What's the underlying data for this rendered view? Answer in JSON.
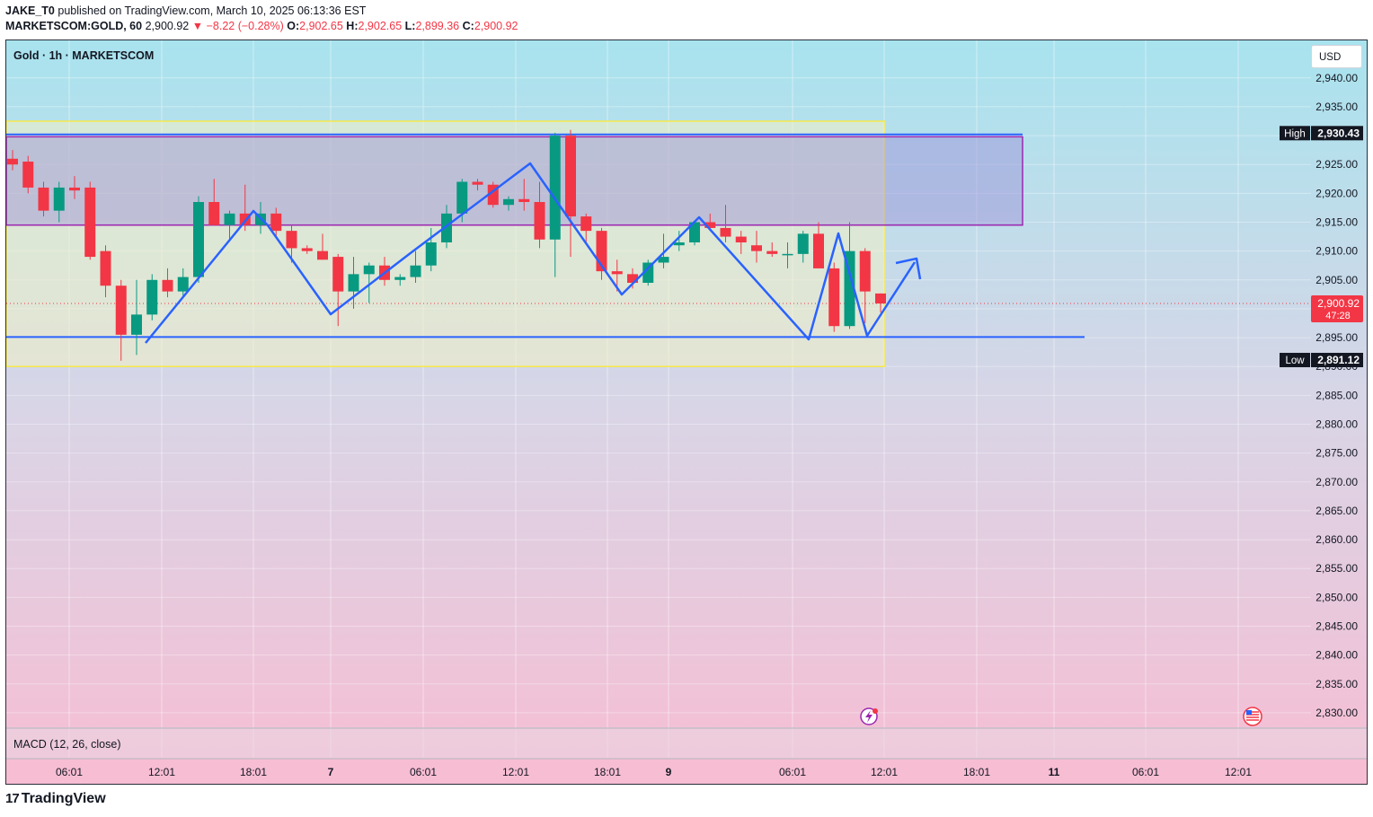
{
  "header": {
    "publisher": "JAKE_T0",
    "published_text": "published on TradingView.com, March 10, 2025 06:13:36 EST",
    "symbol": "MARKETSCOM:GOLD, 60",
    "last": "2,900.92",
    "change": "−8.22 (−0.28%)",
    "o_label": "O:",
    "o": "2,902.65",
    "h_label": "H:",
    "h": "2,902.65",
    "l_label": "L:",
    "l": "2,899.36",
    "c_label": "C:",
    "c": "2,900.92"
  },
  "chart_title": "Gold · 1h · MARKETSCOM",
  "currency_button": "USD",
  "indicator_label": "MACD (12, 26, close)",
  "footer_brand": "TradingView",
  "colors": {
    "up": "#089981",
    "down": "#f23645",
    "drawing": "#2962ff",
    "resistance_zone": "#9c27b0",
    "range_box": "#ffeb3b"
  },
  "chart_data": {
    "type": "candlestick",
    "title": "Gold · 1h · MARKETSCOM",
    "ylim": [
      2827.5,
      2946.5
    ],
    "y_ticks": [
      2940,
      2935,
      2930,
      2925,
      2920,
      2915,
      2910,
      2905,
      2900,
      2895,
      2890,
      2885,
      2880,
      2875,
      2870,
      2865,
      2860,
      2855,
      2850,
      2845,
      2840,
      2835,
      2830
    ],
    "y_tick_labels": [
      "2,940.00",
      "2,935.00",
      "2,930.00",
      "2,925.00",
      "2,920.00",
      "2,915.00",
      "2,910.00",
      "2,905.00",
      "2,900.00",
      "2,895.00",
      "2,890.00",
      "2,885.00",
      "2,880.00",
      "2,875.00",
      "2,870.00",
      "2,865.00",
      "2,860.00",
      "2,855.00",
      "2,850.00",
      "2,845.00",
      "2,840.00",
      "2,835.00",
      "2,830.00"
    ],
    "x_ticks": [
      "06:01",
      "12:01",
      "18:01",
      "7",
      "06:01",
      "12:01",
      "18:01",
      "9",
      "06:01",
      "12:01",
      "18:01",
      "11",
      "06:01",
      "12:01"
    ],
    "candles": [
      {
        "o": 2926.0,
        "h": 2927.5,
        "l": 2924.0,
        "c": 2925.0
      },
      {
        "o": 2925.5,
        "h": 2926.5,
        "l": 2920.0,
        "c": 2921.0
      },
      {
        "o": 2921.0,
        "h": 2922.0,
        "l": 2916.0,
        "c": 2917.0
      },
      {
        "o": 2917.0,
        "h": 2922.0,
        "l": 2915.0,
        "c": 2921.0
      },
      {
        "o": 2921.0,
        "h": 2923.0,
        "l": 2919.0,
        "c": 2920.5
      },
      {
        "o": 2921.0,
        "h": 2922.0,
        "l": 2908.5,
        "c": 2909.0
      },
      {
        "o": 2910.0,
        "h": 2911.0,
        "l": 2902.0,
        "c": 2904.0
      },
      {
        "o": 2904.0,
        "h": 2905.0,
        "l": 2891.0,
        "c": 2895.5
      },
      {
        "o": 2895.5,
        "h": 2905.0,
        "l": 2892.0,
        "c": 2899.0
      },
      {
        "o": 2899.0,
        "h": 2906.0,
        "l": 2898.0,
        "c": 2905.0
      },
      {
        "o": 2905.0,
        "h": 2907.0,
        "l": 2902.0,
        "c": 2903.0
      },
      {
        "o": 2903.0,
        "h": 2907.0,
        "l": 2902.0,
        "c": 2905.5
      },
      {
        "o": 2905.5,
        "h": 2919.5,
        "l": 2904.5,
        "c": 2918.5
      },
      {
        "o": 2918.5,
        "h": 2922.5,
        "l": 2914.5,
        "c": 2914.5
      },
      {
        "o": 2914.5,
        "h": 2917.0,
        "l": 2912.0,
        "c": 2916.5
      },
      {
        "o": 2916.5,
        "h": 2921.5,
        "l": 2913.5,
        "c": 2914.5
      },
      {
        "o": 2914.5,
        "h": 2918.5,
        "l": 2913.0,
        "c": 2916.5
      },
      {
        "o": 2916.5,
        "h": 2917.5,
        "l": 2912.5,
        "c": 2913.5
      },
      {
        "o": 2913.5,
        "h": 2914.5,
        "l": 2908.0,
        "c": 2910.5
      },
      {
        "o": 2910.5,
        "h": 2911.0,
        "l": 2909.5,
        "c": 2910.0
      },
      {
        "o": 2910.0,
        "h": 2913.0,
        "l": 2908.5,
        "c": 2908.5
      },
      {
        "o": 2909.0,
        "h": 2909.5,
        "l": 2897.0,
        "c": 2903.0
      },
      {
        "o": 2903.0,
        "h": 2909.0,
        "l": 2900.0,
        "c": 2906.0
      },
      {
        "o": 2906.0,
        "h": 2908.0,
        "l": 2901.0,
        "c": 2907.5
      },
      {
        "o": 2907.5,
        "h": 2909.0,
        "l": 2904.0,
        "c": 2905.0
      },
      {
        "o": 2905.0,
        "h": 2906.0,
        "l": 2904.0,
        "c": 2905.5
      },
      {
        "o": 2905.5,
        "h": 2910.0,
        "l": 2904.5,
        "c": 2907.5
      },
      {
        "o": 2907.5,
        "h": 2914.0,
        "l": 2906.5,
        "c": 2911.5
      },
      {
        "o": 2911.5,
        "h": 2918.0,
        "l": 2910.5,
        "c": 2916.5
      },
      {
        "o": 2916.5,
        "h": 2922.5,
        "l": 2915.0,
        "c": 2922.0
      },
      {
        "o": 2922.0,
        "h": 2922.5,
        "l": 2920.5,
        "c": 2921.5
      },
      {
        "o": 2921.5,
        "h": 2922.0,
        "l": 2917.5,
        "c": 2918.0
      },
      {
        "o": 2918.0,
        "h": 2919.5,
        "l": 2917.0,
        "c": 2919.0
      },
      {
        "o": 2919.0,
        "h": 2922.5,
        "l": 2917.0,
        "c": 2918.5
      },
      {
        "o": 2918.5,
        "h": 2922.0,
        "l": 2910.5,
        "c": 2912.0
      },
      {
        "o": 2912.0,
        "h": 2930.5,
        "l": 2905.5,
        "c": 2930.0
      },
      {
        "o": 2930.0,
        "h": 2931.0,
        "l": 2909.0,
        "c": 2916.0
      },
      {
        "o": 2916.0,
        "h": 2916.5,
        "l": 2911.5,
        "c": 2913.5
      },
      {
        "o": 2913.5,
        "h": 2914.0,
        "l": 2905.0,
        "c": 2906.5
      },
      {
        "o": 2906.5,
        "h": 2908.5,
        "l": 2903.0,
        "c": 2906.0
      },
      {
        "o": 2906.0,
        "h": 2907.0,
        "l": 2903.5,
        "c": 2904.5
      },
      {
        "o": 2904.5,
        "h": 2908.5,
        "l": 2904.0,
        "c": 2908.0
      },
      {
        "o": 2908.0,
        "h": 2913.0,
        "l": 2907.0,
        "c": 2909.0
      },
      {
        "o": 2911.0,
        "h": 2913.5,
        "l": 2910.0,
        "c": 2911.5
      },
      {
        "o": 2911.5,
        "h": 2915.0,
        "l": 2911.0,
        "c": 2915.0
      },
      {
        "o": 2915.0,
        "h": 2916.5,
        "l": 2913.5,
        "c": 2914.0
      },
      {
        "o": 2914.0,
        "h": 2918.0,
        "l": 2911.5,
        "c": 2912.5
      },
      {
        "o": 2912.5,
        "h": 2913.5,
        "l": 2909.5,
        "c": 2911.5
      },
      {
        "o": 2911.0,
        "h": 2913.5,
        "l": 2908.0,
        "c": 2910.0
      },
      {
        "o": 2910.0,
        "h": 2911.5,
        "l": 2909.0,
        "c": 2909.5
      },
      {
        "o": 2909.5,
        "h": 2911.5,
        "l": 2907.0,
        "c": 2909.5
      },
      {
        "o": 2909.5,
        "h": 2913.5,
        "l": 2908.0,
        "c": 2913.0
      },
      {
        "o": 2913.0,
        "h": 2915.0,
        "l": 2907.5,
        "c": 2907.0
      },
      {
        "o": 2907.0,
        "h": 2908.0,
        "l": 2896.0,
        "c": 2897.0
      },
      {
        "o": 2897.0,
        "h": 2915.0,
        "l": 2896.5,
        "c": 2910.0
      },
      {
        "o": 2910.0,
        "h": 2910.5,
        "l": 2897.5,
        "c": 2903.0
      },
      {
        "o": 2902.65,
        "h": 2902.65,
        "l": 2899.36,
        "c": 2900.92
      }
    ],
    "reference_lines": [
      {
        "label": "High",
        "value": 2930.43,
        "text": "2,930.43"
      },
      {
        "label": "Low",
        "value": 2891.12,
        "text": "2,891.12"
      }
    ],
    "current_price": {
      "value": 2900.92,
      "text": "2,900.92",
      "countdown": "47:28"
    },
    "support_level": 2895.1,
    "resistance_level": 2930.2,
    "resistance_zone": [
      2914.5,
      2929.8
    ],
    "range_box": [
      2890.0,
      2932.5
    ]
  }
}
